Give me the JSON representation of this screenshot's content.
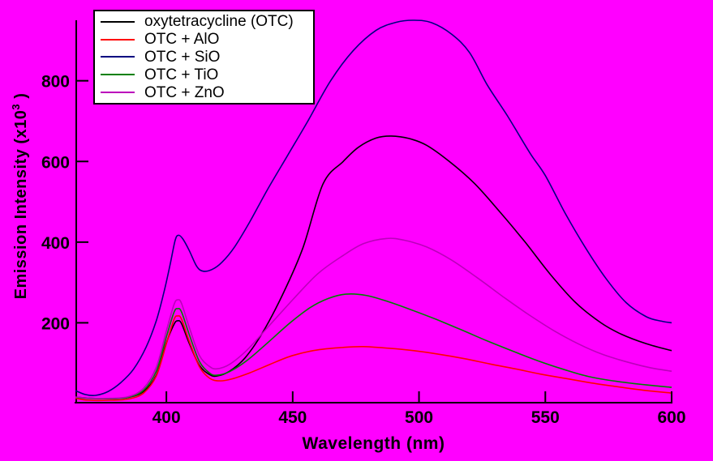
{
  "chart_data": {
    "type": "line",
    "title": "",
    "xlabel": "Wavelength (nm)",
    "ylabel_base": "Emission Intensity (x10",
    "ylabel_sup": "3",
    "ylabel_close": " )",
    "xlim": [
      364,
      600
    ],
    "ylim": [
      0,
      950
    ],
    "x_ticks": [
      "400",
      "450",
      "500",
      "550",
      "600"
    ],
    "x_tick_values": [
      400,
      450,
      500,
      550,
      600
    ],
    "y_ticks": [
      "200",
      "400",
      "600",
      "800"
    ],
    "y_tick_values": [
      200,
      400,
      600,
      800
    ],
    "grid": false,
    "legend_position": "top-left",
    "background_color": "#FF00FF",
    "axis_color": "#000000",
    "legend_bg": "#FFFFFF",
    "series": [
      {
        "name": "oxytetracycline (OTC)",
        "color": "#000000",
        "points": [
          [
            364,
            16
          ],
          [
            370,
            13
          ],
          [
            378,
            12
          ],
          [
            385,
            15
          ],
          [
            391,
            30
          ],
          [
            396,
            70
          ],
          [
            400,
            150
          ],
          [
            403,
            196
          ],
          [
            404.5,
            205
          ],
          [
            406,
            198
          ],
          [
            409,
            150
          ],
          [
            413,
            95
          ],
          [
            417,
            72
          ],
          [
            420,
            68
          ],
          [
            425,
            80
          ],
          [
            431,
            112
          ],
          [
            438,
            175
          ],
          [
            446,
            270
          ],
          [
            454,
            385
          ],
          [
            462,
            544
          ],
          [
            470,
            600
          ],
          [
            476,
            635
          ],
          [
            483,
            658
          ],
          [
            489,
            663
          ],
          [
            496,
            657
          ],
          [
            503,
            640
          ],
          [
            512,
            600
          ],
          [
            522,
            545
          ],
          [
            532,
            475
          ],
          [
            542,
            400
          ],
          [
            552,
            320
          ],
          [
            562,
            250
          ],
          [
            572,
            200
          ],
          [
            580,
            172
          ],
          [
            590,
            148
          ],
          [
            600,
            131
          ]
        ]
      },
      {
        "name": "OTC + AlO",
        "color": "#FF0000",
        "points": [
          [
            364,
            13
          ],
          [
            369,
            8
          ],
          [
            378,
            8
          ],
          [
            385,
            11
          ],
          [
            391,
            26
          ],
          [
            396,
            68
          ],
          [
            400,
            148
          ],
          [
            403,
            208
          ],
          [
            404.5,
            217
          ],
          [
            406,
            209
          ],
          [
            409,
            155
          ],
          [
            413,
            92
          ],
          [
            417,
            63
          ],
          [
            421,
            56
          ],
          [
            426,
            61
          ],
          [
            433,
            76
          ],
          [
            441,
            97
          ],
          [
            450,
            119
          ],
          [
            460,
            133
          ],
          [
            470,
            139
          ],
          [
            478,
            141
          ],
          [
            488,
            137
          ],
          [
            498,
            131
          ],
          [
            508,
            122
          ],
          [
            518,
            111
          ],
          [
            528,
            98
          ],
          [
            538,
            86
          ],
          [
            548,
            73
          ],
          [
            558,
            62
          ],
          [
            568,
            51
          ],
          [
            578,
            42
          ],
          [
            590,
            32
          ],
          [
            600,
            26
          ]
        ]
      },
      {
        "name": "OTC + SiO",
        "color": "#000080",
        "points": [
          [
            364,
            32
          ],
          [
            368,
            22
          ],
          [
            372,
            20
          ],
          [
            377,
            30
          ],
          [
            382,
            52
          ],
          [
            387,
            85
          ],
          [
            392,
            140
          ],
          [
            396,
            205
          ],
          [
            399,
            275
          ],
          [
            401.5,
            345
          ],
          [
            403.5,
            405
          ],
          [
            404.8,
            417
          ],
          [
            406.5,
            408
          ],
          [
            409,
            380
          ],
          [
            412,
            340
          ],
          [
            414.5,
            328
          ],
          [
            418,
            332
          ],
          [
            422,
            350
          ],
          [
            427,
            388
          ],
          [
            433,
            450
          ],
          [
            440,
            530
          ],
          [
            448,
            615
          ],
          [
            456,
            700
          ],
          [
            465,
            800
          ],
          [
            474,
            875
          ],
          [
            483,
            925
          ],
          [
            491,
            945
          ],
          [
            498,
            950
          ],
          [
            505,
            944
          ],
          [
            513,
            915
          ],
          [
            520,
            870
          ],
          [
            527,
            790
          ],
          [
            535,
            713
          ],
          [
            544,
            620
          ],
          [
            550,
            565
          ],
          [
            558,
            470
          ],
          [
            566,
            385
          ],
          [
            574,
            310
          ],
          [
            582,
            250
          ],
          [
            590,
            215
          ],
          [
            596,
            204
          ],
          [
            600,
            200
          ]
        ]
      },
      {
        "name": "OTC + TiO",
        "color": "#008000",
        "points": [
          [
            364,
            15
          ],
          [
            370,
            12
          ],
          [
            378,
            12
          ],
          [
            385,
            15
          ],
          [
            391,
            33
          ],
          [
            396,
            80
          ],
          [
            400,
            165
          ],
          [
            403,
            226
          ],
          [
            404.5,
            235
          ],
          [
            406,
            227
          ],
          [
            409,
            172
          ],
          [
            413,
            105
          ],
          [
            417,
            76
          ],
          [
            420,
            70
          ],
          [
            425,
            79
          ],
          [
            432,
            107
          ],
          [
            440,
            150
          ],
          [
            449,
            200
          ],
          [
            457,
            238
          ],
          [
            464,
            260
          ],
          [
            471,
            271
          ],
          [
            479,
            268
          ],
          [
            488,
            252
          ],
          [
            497,
            232
          ],
          [
            507,
            208
          ],
          [
            517,
            182
          ],
          [
            527,
            155
          ],
          [
            537,
            130
          ],
          [
            547,
            106
          ],
          [
            557,
            85
          ],
          [
            567,
            67
          ],
          [
            578,
            55
          ],
          [
            590,
            46
          ],
          [
            600,
            40
          ]
        ]
      },
      {
        "name": "OTC + ZnO",
        "color": "#BB00BB",
        "points": [
          [
            364,
            16
          ],
          [
            370,
            13
          ],
          [
            378,
            13
          ],
          [
            385,
            17
          ],
          [
            391,
            38
          ],
          [
            396,
            90
          ],
          [
            400,
            180
          ],
          [
            403,
            245
          ],
          [
            404.5,
            257
          ],
          [
            406,
            248
          ],
          [
            409,
            190
          ],
          [
            413,
            120
          ],
          [
            417,
            92
          ],
          [
            420,
            86
          ],
          [
            425,
            97
          ],
          [
            432,
            133
          ],
          [
            440,
            188
          ],
          [
            450,
            257
          ],
          [
            460,
            322
          ],
          [
            470,
            367
          ],
          [
            478,
            396
          ],
          [
            487,
            409
          ],
          [
            494,
            405
          ],
          [
            503,
            388
          ],
          [
            513,
            355
          ],
          [
            523,
            312
          ],
          [
            533,
            266
          ],
          [
            543,
            222
          ],
          [
            553,
            182
          ],
          [
            563,
            148
          ],
          [
            573,
            121
          ],
          [
            584,
            100
          ],
          [
            592,
            88
          ],
          [
            600,
            80
          ]
        ]
      }
    ]
  },
  "layout_note": "emission spectra of OTC with metal oxides on magenta background"
}
